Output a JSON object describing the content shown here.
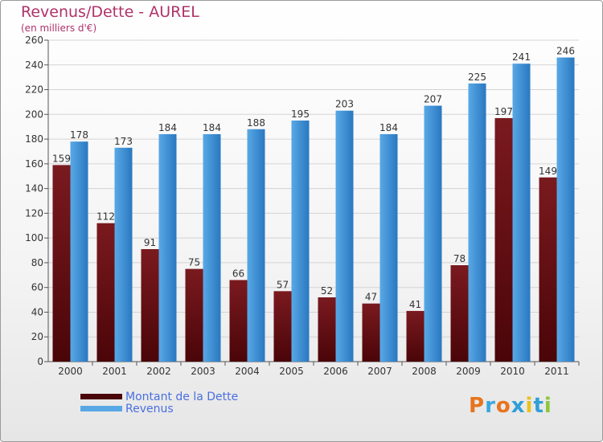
{
  "colors": {
    "dette": "#7a1a1f",
    "dette_dark": "#4a0508",
    "revenus": "#58a8e6",
    "revenus_dark": "#2a78c0",
    "title": "#b0326a",
    "legend_text": "#4a6fe0"
  },
  "chart_data": {
    "type": "bar",
    "title": "Revenus/Dette - AUREL",
    "subtitle": "(en milliers d'€)",
    "categories": [
      "2000",
      "2001",
      "2002",
      "2003",
      "2004",
      "2005",
      "2006",
      "2007",
      "2008",
      "2009",
      "2010",
      "2011"
    ],
    "series": [
      {
        "name": "Montant de la Dette",
        "values": [
          159,
          112,
          91,
          75,
          66,
          57,
          52,
          47,
          41,
          78,
          197,
          149
        ]
      },
      {
        "name": "Revenus",
        "values": [
          178,
          173,
          184,
          184,
          188,
          195,
          203,
          184,
          207,
          225,
          241,
          246
        ]
      }
    ],
    "ylim": [
      0,
      260
    ],
    "yticks": [
      0,
      20,
      40,
      60,
      80,
      100,
      120,
      140,
      160,
      180,
      200,
      220,
      240,
      260
    ],
    "grid": true,
    "legend": "bottom-left"
  },
  "logo": {
    "text": "Proxiti",
    "letter_colors": [
      "#e8741e",
      "#3aa6e0",
      "#e8741e",
      "#2f9fd8",
      "#e8c21e",
      "#2f9fd8",
      "#8cc63f"
    ]
  }
}
